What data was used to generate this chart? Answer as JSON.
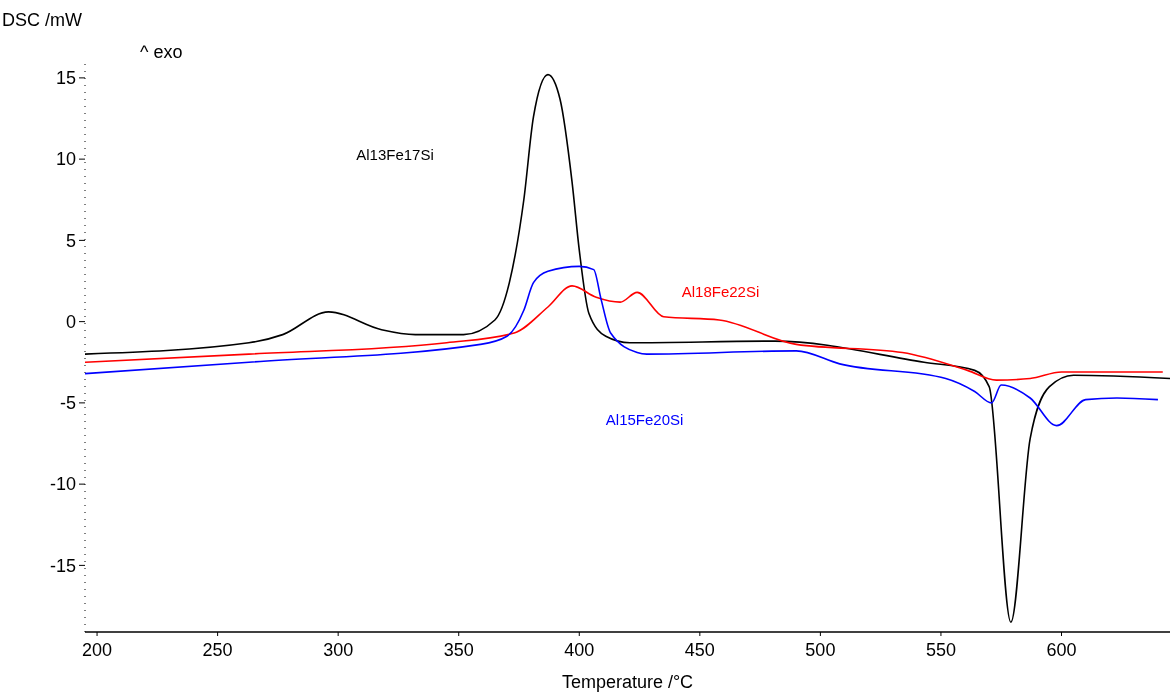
{
  "chart_data": {
    "type": "line",
    "xlabel": "Temperature /°C",
    "ylabel": "DSC /mW",
    "annotations": [
      "^ exo"
    ],
    "xlim": [
      195,
      645
    ],
    "ylim": [
      -19.1,
      16.1
    ],
    "xticks": [
      200,
      250,
      300,
      350,
      400,
      450,
      500,
      550,
      600
    ],
    "yticks": [
      -15,
      -10,
      -5,
      0,
      5,
      10,
      15
    ],
    "grid": false,
    "series": [
      {
        "name": "Al13Fe17Si",
        "color": "#000000",
        "x": [
          195,
          263,
          277,
          296,
          318,
          332,
          352,
          365,
          371,
          377,
          381,
          387,
          392,
          397,
          400,
          404,
          411,
          421,
          481,
          543,
          564,
          570,
          579,
          587,
          595,
          605,
          645
        ],
        "values": [
          -2.0,
          -1.3,
          -0.8,
          0.6,
          -0.5,
          -0.8,
          -0.8,
          0.1,
          2.4,
          7.5,
          12.6,
          15.2,
          13.7,
          8.6,
          4.4,
          0.5,
          -0.9,
          -1.3,
          -1.2,
          -2.5,
          -3.0,
          -4.0,
          -18.5,
          -7.2,
          -4.0,
          -3.3,
          -3.5
        ]
      },
      {
        "name": "Al18Fe22Si",
        "color": "#ff0000",
        "x": [
          195,
          263,
          345,
          373,
          387,
          397,
          407,
          417,
          424,
          435,
          458,
          490,
          534,
          561,
          573,
          587,
          600,
          632,
          642
        ],
        "values": [
          -2.5,
          -2.0,
          -1.3,
          -0.7,
          0.9,
          2.2,
          1.5,
          1.2,
          1.8,
          0.3,
          0.1,
          -1.4,
          -1.9,
          -3.0,
          -3.6,
          -3.5,
          -3.1,
          -3.1,
          -3.1
        ]
      },
      {
        "name": "Al15Fe20Si",
        "color": "#0000ff",
        "x": [
          195,
          263,
          359,
          370,
          377,
          381,
          387,
          400,
          406,
          409,
          413,
          424,
          428,
          490,
          508,
          552,
          564,
          571,
          575,
          587,
          598,
          610,
          623,
          640
        ],
        "values": [
          -3.2,
          -2.5,
          -1.4,
          -0.9,
          0.7,
          2.4,
          3.1,
          3.4,
          3.2,
          1.4,
          -0.7,
          -1.9,
          -2.0,
          -1.8,
          -2.6,
          -3.5,
          -4.3,
          -5.0,
          -3.9,
          -4.7,
          -6.4,
          -4.8,
          -4.7,
          -4.8
        ]
      }
    ]
  }
}
